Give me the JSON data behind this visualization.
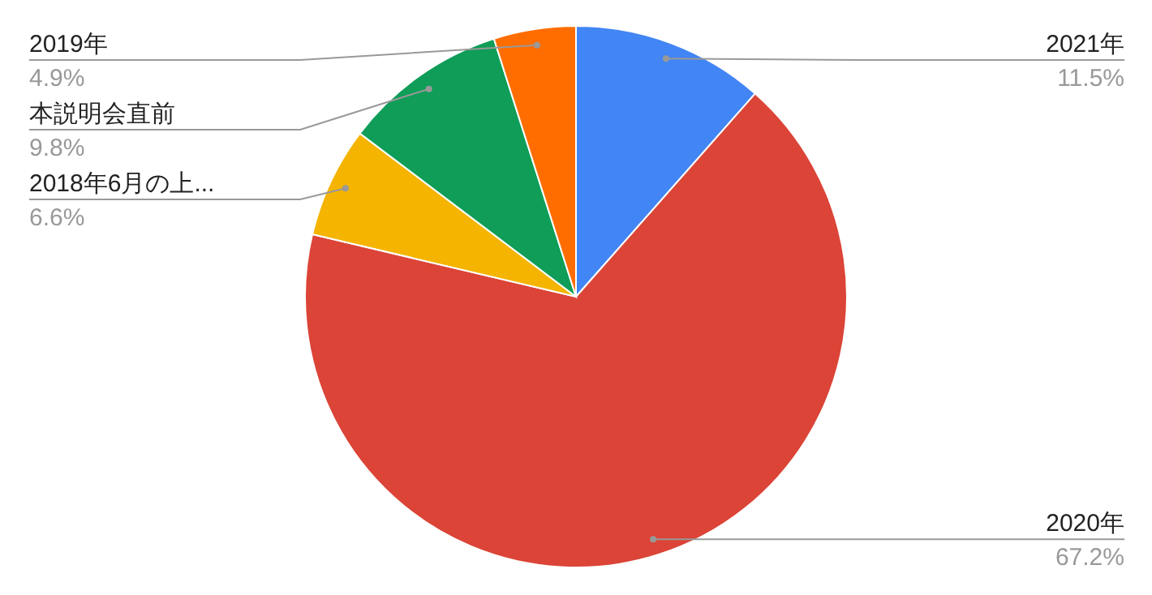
{
  "chart_data": {
    "type": "pie",
    "categories": [
      "2021年",
      "2020年",
      "2018年6月の上...",
      "本説明会直前",
      "2019年"
    ],
    "values": [
      11.5,
      67.2,
      6.6,
      9.8,
      4.9
    ],
    "colors": [
      "#4285f4",
      "#db4437",
      "#f4b400",
      "#0f9d58",
      "#ff6d01"
    ],
    "value_labels": [
      "11.5%",
      "67.2%",
      "6.6%",
      "9.8%",
      "4.9%"
    ]
  }
}
